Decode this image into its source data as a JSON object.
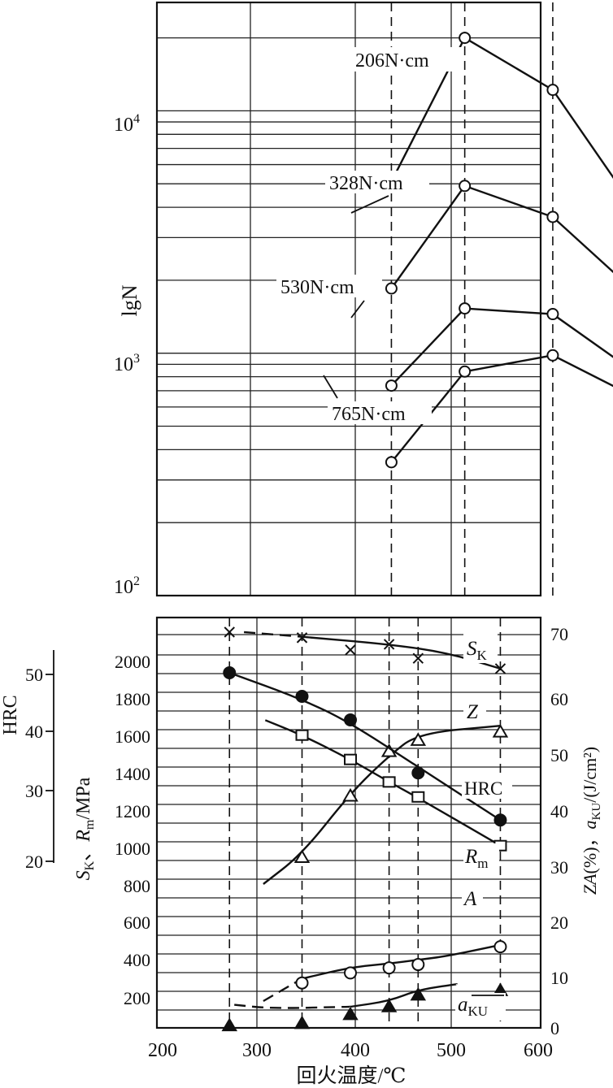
{
  "figure": {
    "xlabel": "回火温度/℃"
  },
  "chart_data": [
    {
      "type": "line",
      "ylabel": "lgN",
      "y_scale": "log",
      "ylim": [
        100,
        28000
      ],
      "y_ticks": [
        {
          "value": 10000,
          "base": "10",
          "exp": "4"
        },
        {
          "value": 1000,
          "base": "10",
          "exp": "3"
        },
        {
          "value": 100,
          "base": "10",
          "exp": "2"
        }
      ],
      "x_reference_lines": [
        275,
        350,
        440,
        555
      ],
      "series": [
        {
          "name": "206N·cm",
          "points": [
            [
              275,
              5100
            ],
            [
              350,
              20000
            ],
            [
              440,
              12200
            ],
            [
              555,
              2600
            ]
          ]
        },
        {
          "name": "328N·cm",
          "points": [
            [
              275,
              1850
            ],
            [
              350,
              4900
            ],
            [
              440,
              3650
            ],
            [
              555,
              1380
            ]
          ]
        },
        {
          "name": "530N·cm",
          "points": [
            [
              275,
              735
            ],
            [
              350,
              1530
            ],
            [
              440,
              1450
            ],
            [
              555,
              680
            ]
          ]
        },
        {
          "name": "765N·cm",
          "points": [
            [
              275,
              355
            ],
            [
              350,
              840
            ],
            [
              440,
              980
            ],
            [
              555,
              570
            ]
          ]
        }
      ],
      "grid": true
    },
    {
      "type": "line",
      "xlim": [
        200,
        600
      ],
      "x_ticks": [
        "200",
        "300",
        "400",
        "500",
        "600"
      ],
      "ylabel_left_outer": "HRC",
      "hrc_ticks": [
        "50",
        "40",
        "30",
        "20"
      ],
      "ylabel_left": "S_K、R_m/MPa",
      "ylim_left": [
        0,
        2200
      ],
      "left_ticks": [
        "200",
        "400",
        "600",
        "800",
        "1000",
        "1200",
        "1400",
        "1600",
        "1800",
        "2000"
      ],
      "ylabel_right": "ZA(%)，a_KU/(J/cm²)",
      "ylim_right": [
        0,
        73
      ],
      "right_ticks": [
        "0",
        "10",
        "20",
        "30",
        "40",
        "50",
        "60",
        "70"
      ],
      "x_reference_lines": [
        275,
        350,
        440,
        470,
        555
      ],
      "series": [
        {
          "name": "S_K",
          "axis": "left",
          "marker": "x",
          "points": [
            [
              275,
              2100
            ],
            [
              350,
              2070
            ],
            [
              400,
              2005
            ],
            [
              440,
              2035
            ],
            [
              470,
              1960
            ],
            [
              555,
              1905
            ]
          ]
        },
        {
          "name": "Z",
          "axis": "right",
          "marker": "open-triangle",
          "points": [
            [
              350,
              31
            ],
            [
              400,
              42
            ],
            [
              440,
              50
            ],
            [
              470,
              52
            ],
            [
              555,
              53.5
            ]
          ]
        },
        {
          "name": "HRC",
          "axis": "hrc",
          "marker": "filled-circle",
          "points": [
            [
              275,
              52
            ],
            [
              350,
              48
            ],
            [
              400,
              44
            ],
            [
              470,
              35
            ],
            [
              555,
              27
            ]
          ]
        },
        {
          "name": "R_m",
          "axis": "left",
          "marker": "open-square",
          "points": [
            [
              350,
              1550
            ],
            [
              400,
              1420
            ],
            [
              440,
              1300
            ],
            [
              470,
              1220
            ],
            [
              555,
              960
            ]
          ]
        },
        {
          "name": "A",
          "axis": "right",
          "marker": "open-circle",
          "points": [
            [
              350,
              8.5
            ],
            [
              400,
              10.3
            ],
            [
              440,
              11.2
            ],
            [
              470,
              11.8
            ],
            [
              555,
              15
            ]
          ]
        },
        {
          "name": "a_KU",
          "axis": "right",
          "marker": "filled-triangle",
          "points": [
            [
              275,
              0.8
            ],
            [
              350,
              1.2
            ],
            [
              400,
              2.8
            ],
            [
              440,
              4.2
            ],
            [
              470,
              6.3
            ],
            [
              555,
              7.1
            ]
          ]
        }
      ],
      "grid": true
    }
  ],
  "labels": {
    "s206": "206N·cm",
    "s328": "328N·cm",
    "s530": "530N·cm",
    "s765": "765N·cm",
    "sk": "S",
    "sk_sub": "K",
    "z": "Z",
    "hrc": "HRC",
    "rm": "R",
    "rm_sub": "m",
    "a": "A",
    "aku": "a",
    "aku_sub": "KU"
  }
}
